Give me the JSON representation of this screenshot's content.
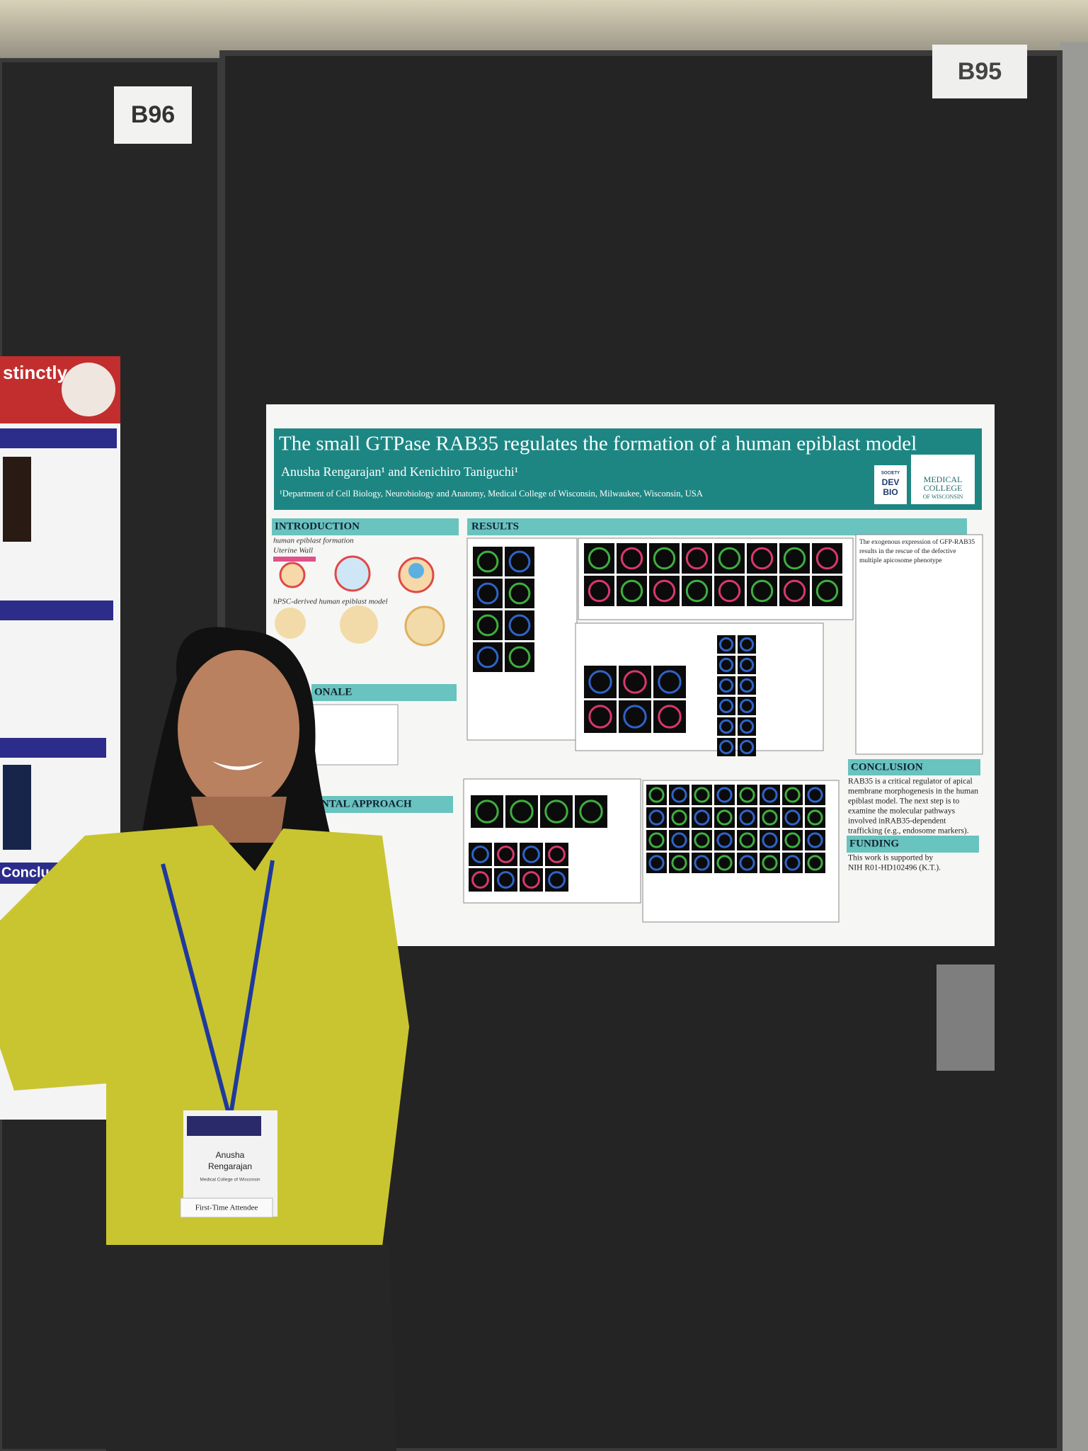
{
  "board_labels": [
    "B96",
    "B95"
  ],
  "left_poster": {
    "heading": "stinctly",
    "conclusion": "Conclusion"
  },
  "poster": {
    "title": "The small GTPase RAB35 regulates the formation of a human epiblast model",
    "authors": "Anusha Rengarajan¹ and Kenichiro Taniguchi¹",
    "affiliation": "¹Department of Cell Biology, Neurobiology and Anatomy, Medical College of Wisconsin, Milwaukee, Wisconsin, USA",
    "logo_society": [
      "SOCIETY",
      "DEV",
      "BIO"
    ],
    "logo_college": [
      "MEDICAL",
      "COLLEGE",
      "OF WISCONSIN"
    ],
    "sections": {
      "introduction": "INTRODUCTION",
      "rationale": "ONALE",
      "approach": "ENTAL APPROACH",
      "results": "RESULTS",
      "conclusion": "CONCLUSION",
      "funding": "FUNDING"
    },
    "intro_labels": [
      "human epiblast formation",
      "Uterine Wall",
      "hPSC-derived human epiblast model"
    ],
    "rescue_text": [
      "The exogenous expression of GFP-RAB35",
      "results in the rescue of the defective",
      "multiple apicosome phenotype"
    ],
    "conclusion_text": [
      "RAB35 is a critical regulator of apical",
      "membrane morphogenesis in the human",
      "epiblast model. The next step is to",
      "examine the molecular pathways",
      "involved inRAB35-dependent",
      "trafficking (e.g., endosome markers)."
    ],
    "funding_text": [
      "This work is supported by",
      "NIH R01-HD102496 (K.T.)."
    ]
  },
  "badge": {
    "first_name": "Anusha",
    "last_name": "Rengarajan",
    "institution": "Medical College of Wisconsin",
    "ribbon": "First-Time Attendee"
  }
}
